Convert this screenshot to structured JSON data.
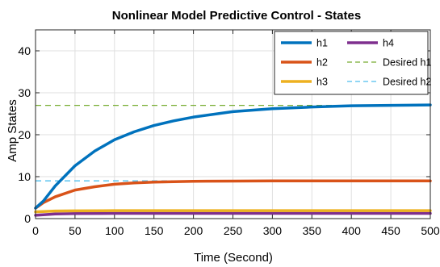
{
  "chart_data": {
    "type": "line",
    "title": "Nonlinear Model Predictive Control - States",
    "xlabel": "Time  (Second)",
    "ylabel": "Amp States",
    "xlim": [
      0,
      500
    ],
    "ylim": [
      0,
      45
    ],
    "xticks": [
      0,
      50,
      100,
      150,
      200,
      250,
      300,
      350,
      400,
      450,
      500
    ],
    "yticks": [
      0,
      10,
      20,
      30,
      40
    ],
    "grid": true,
    "legend_position": "top-right",
    "legend_columns": 2,
    "series": [
      {
        "name": "h1",
        "color": "#0072BD",
        "style": "solid",
        "x": [
          0,
          10,
          25,
          50,
          75,
          100,
          125,
          150,
          175,
          200,
          250,
          300,
          350,
          400,
          450,
          500
        ],
        "y": [
          2.5,
          4.2,
          7.8,
          12.6,
          16.1,
          18.8,
          20.7,
          22.2,
          23.3,
          24.2,
          25.5,
          26.2,
          26.6,
          26.9,
          27.0,
          27.1
        ]
      },
      {
        "name": "h2",
        "color": "#D95319",
        "style": "solid",
        "x": [
          0,
          10,
          25,
          50,
          75,
          100,
          125,
          150,
          200,
          250,
          300,
          400,
          500
        ],
        "y": [
          2.5,
          3.8,
          5.2,
          6.8,
          7.6,
          8.2,
          8.5,
          8.7,
          8.9,
          8.95,
          9.0,
          9.0,
          9.0
        ]
      },
      {
        "name": "h3",
        "color": "#EDB120",
        "style": "solid",
        "x": [
          0,
          25,
          50,
          100,
          200,
          300,
          400,
          500
        ],
        "y": [
          1.6,
          1.8,
          1.85,
          1.9,
          1.9,
          1.9,
          1.9,
          1.9
        ]
      },
      {
        "name": "h4",
        "color": "#7E2F8E",
        "style": "solid",
        "x": [
          0,
          25,
          50,
          100,
          200,
          300,
          400,
          500
        ],
        "y": [
          0.8,
          1.1,
          1.2,
          1.25,
          1.25,
          1.25,
          1.25,
          1.25
        ]
      },
      {
        "name": "Desired h1",
        "color": "#77AC30",
        "style": "dashed",
        "x": [
          0,
          500
        ],
        "y": [
          27,
          27
        ]
      },
      {
        "name": "Desired h2",
        "color": "#4DBEEE",
        "style": "dashed",
        "x": [
          0,
          500
        ],
        "y": [
          9,
          9
        ]
      }
    ],
    "legend_order": [
      "h1",
      "h4",
      "h2",
      "Desired h1",
      "h3",
      "Desired h2"
    ]
  }
}
